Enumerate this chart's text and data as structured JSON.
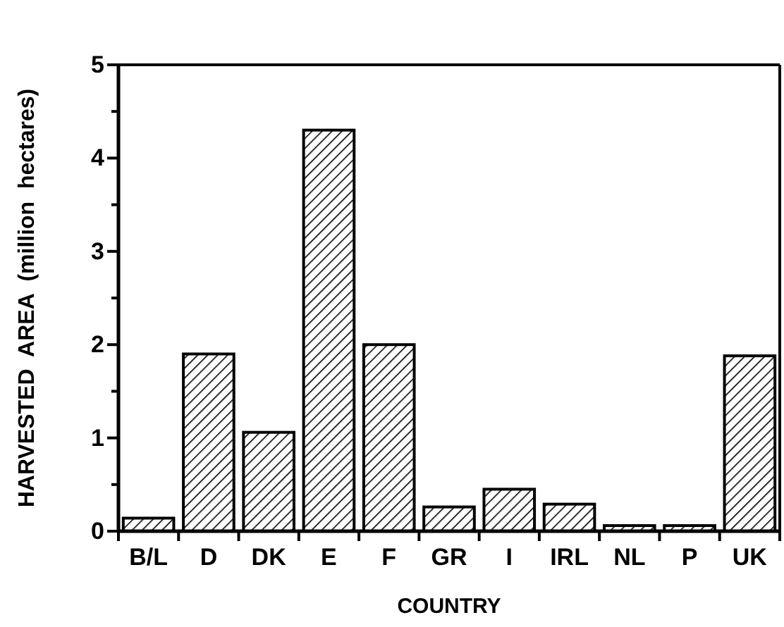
{
  "chart_data": {
    "type": "bar",
    "xlabel": "COUNTRY",
    "ylabel": "HARVESTED  AREA  (million  hectares)",
    "categories": [
      "B/L",
      "D",
      "DK",
      "E",
      "F",
      "GR",
      "I",
      "IRL",
      "NL",
      "P",
      "UK"
    ],
    "values": [
      0.14,
      1.9,
      1.06,
      4.3,
      2.0,
      0.26,
      0.45,
      0.29,
      0.06,
      0.06,
      1.88
    ],
    "color": "#000000",
    "ylim": [
      0,
      5
    ],
    "yticks": [
      0,
      {
        "value": 0.5,
        "label": null
      },
      1,
      {
        "value": 1.5,
        "label": null
      },
      2,
      {
        "value": 2.5,
        "label": null
      },
      3,
      {
        "value": 3.5,
        "label": null
      },
      4,
      {
        "value": 4.5,
        "label": null
      },
      5
    ],
    "grid": false
  }
}
